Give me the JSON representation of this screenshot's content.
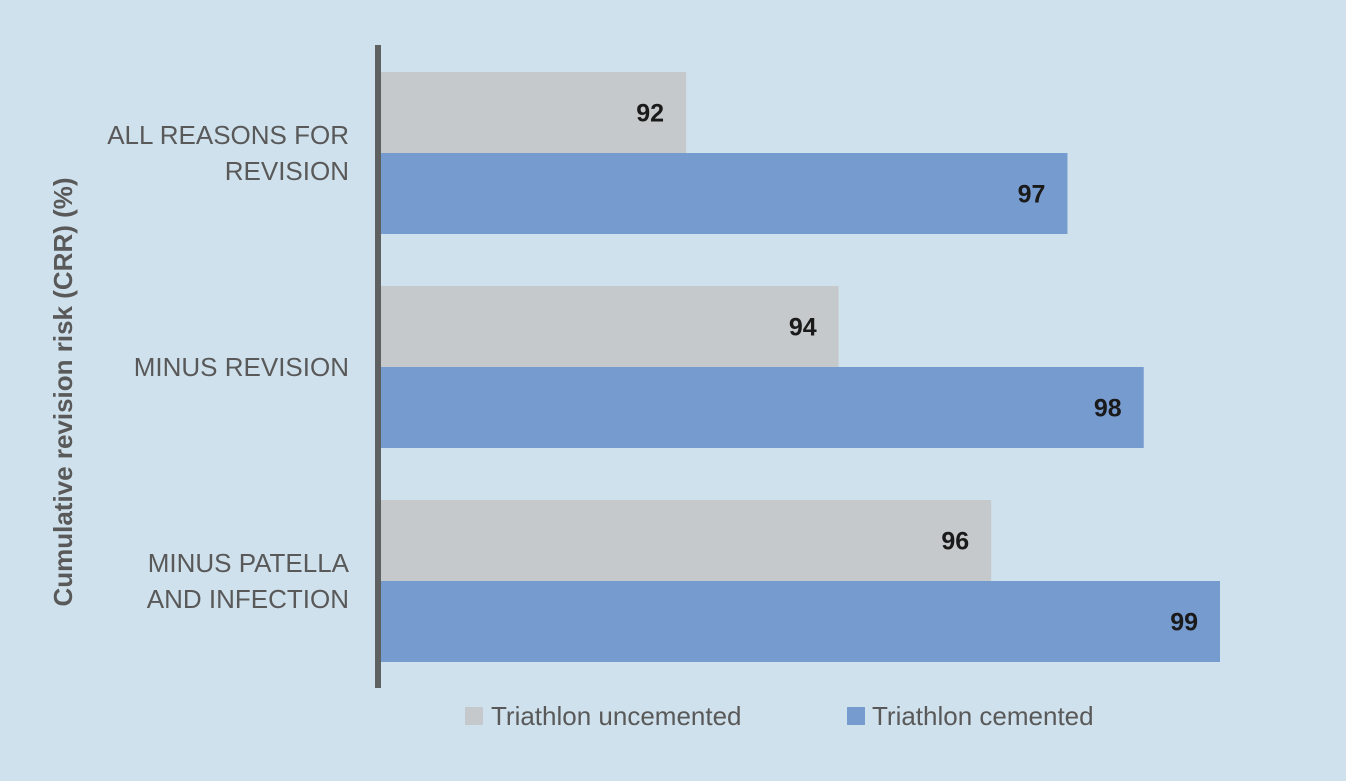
{
  "chart_data": {
    "type": "bar",
    "orientation": "horizontal",
    "categories": [
      [
        "ALL REASONS FOR",
        "REVISION"
      ],
      [
        "MINUS REVISION"
      ],
      [
        "MINUS PATELLA",
        "AND INFECTION"
      ]
    ],
    "series": [
      {
        "name": "Triathlon uncemented",
        "values": [
          92,
          94,
          96
        ],
        "color": "#c6c9cb"
      },
      {
        "name": "Triathlon cemented",
        "values": [
          97,
          98,
          99
        ],
        "color": "#769bcf"
      }
    ],
    "xlabel": "",
    "ylabel": "Cumulative revision risk (CRR) (%)",
    "xlim": [
      88,
      99
    ],
    "data_labels": true,
    "gridlines": false,
    "legend_position": "bottom",
    "background_color": "#cfe1ec",
    "axis_color": "#5f6060"
  }
}
